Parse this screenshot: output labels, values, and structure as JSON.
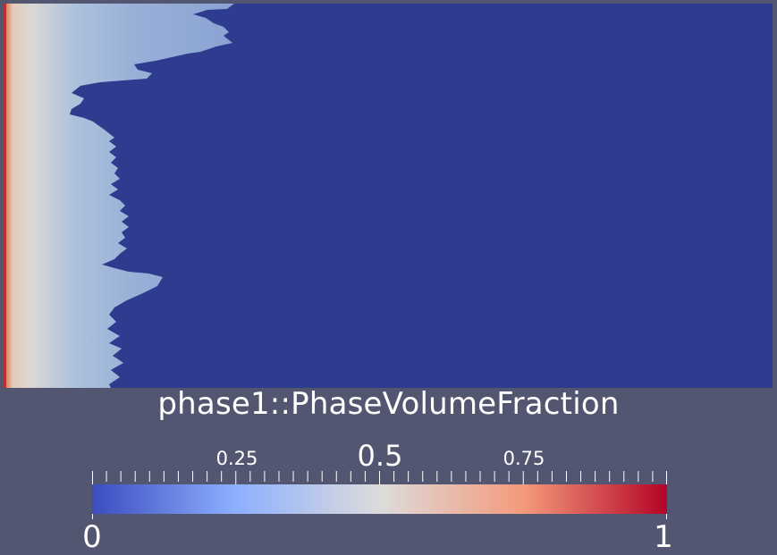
{
  "visualization": {
    "field_title": "phase1::PhaseVolumeFraction",
    "background_color": "#535670",
    "domain_fill_color": "#2f3b8e"
  },
  "colorbar": {
    "min_label": "0",
    "max_label": "1",
    "tick_labels": [
      "0.25",
      "0.5",
      "0.75"
    ],
    "range": [
      0,
      1
    ],
    "colormap": "cool-to-warm",
    "colors": [
      "#3b4cc0",
      "#8db0fe",
      "#dddcdc",
      "#f49a7b",
      "#b40426"
    ]
  }
}
